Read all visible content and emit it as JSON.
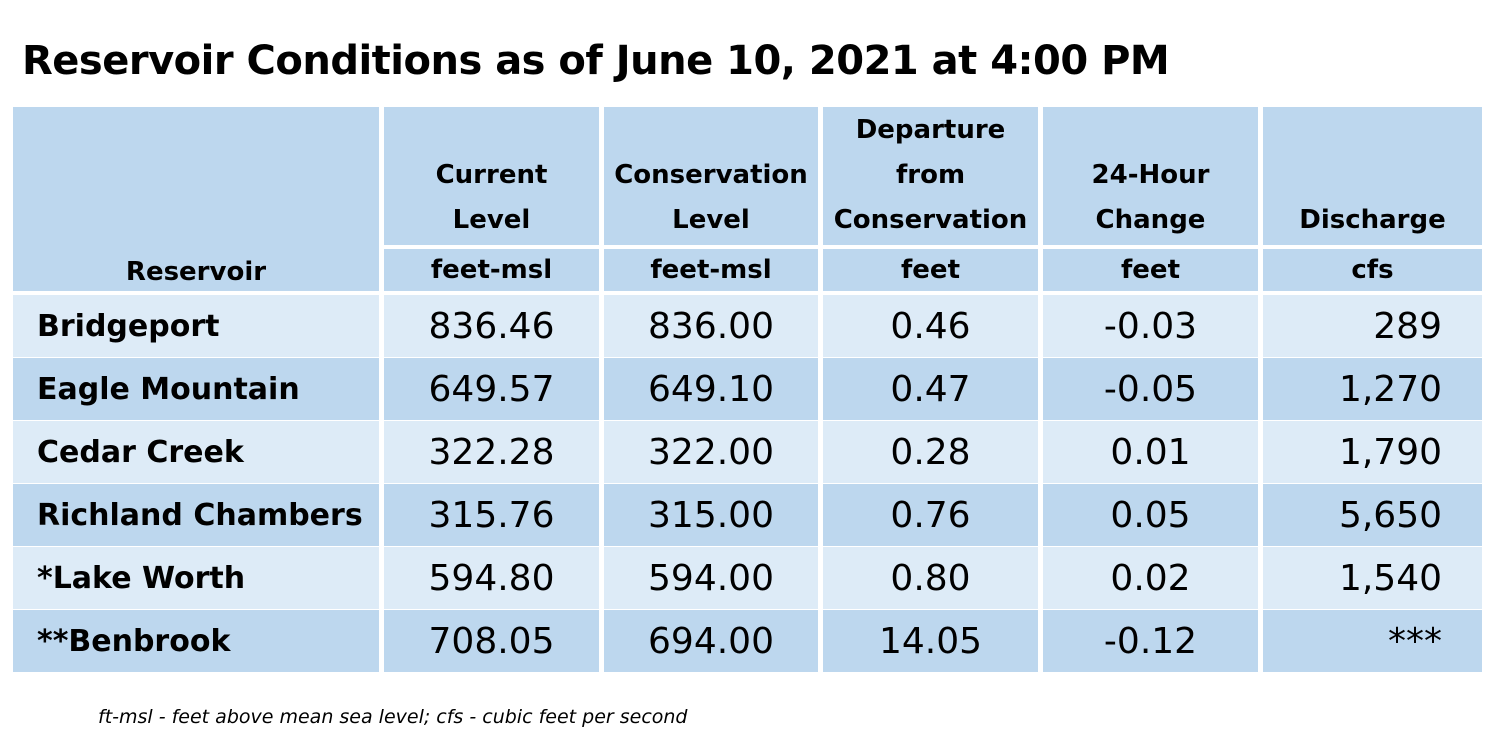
{
  "title": "Reservoir Conditions as of June 10, 2021 at 4:00 PM",
  "table": {
    "header_reservoir": "Reservoir",
    "columns": [
      {
        "lines": [
          "Current",
          "Level"
        ],
        "unit": "feet-msl"
      },
      {
        "lines": [
          "Conservation",
          "Level"
        ],
        "unit": "feet-msl"
      },
      {
        "lines": [
          "Departure",
          "from",
          "Conservation"
        ],
        "unit": "feet"
      },
      {
        "lines": [
          "24-Hour",
          "Change"
        ],
        "unit": "feet"
      },
      {
        "lines": [
          "Discharge"
        ],
        "unit": "cfs"
      }
    ],
    "rows": [
      {
        "name": "Bridgeport",
        "values": [
          "836.46",
          "836.00",
          "0.46",
          "-0.03",
          "289"
        ]
      },
      {
        "name": "Eagle Mountain",
        "values": [
          "649.57",
          "649.10",
          "0.47",
          "-0.05",
          "1,270"
        ]
      },
      {
        "name": "Cedar Creek",
        "values": [
          "322.28",
          "322.00",
          "0.28",
          "0.01",
          "1,790"
        ]
      },
      {
        "name": "Richland Chambers",
        "values": [
          "315.76",
          "315.00",
          "0.76",
          "0.05",
          "5,650"
        ]
      },
      {
        "name": "*Lake Worth",
        "values": [
          "594.80",
          "594.00",
          "0.80",
          "0.02",
          "1,540"
        ]
      },
      {
        "name": "**Benbrook",
        "values": [
          "708.05",
          "694.00",
          "14.05",
          "-0.12",
          "***"
        ]
      }
    ],
    "colors": {
      "header": "#bdd7ee",
      "row_light": "#ddebf7",
      "row_dark": "#bdd7ee",
      "divider": "#ffffff"
    }
  },
  "footnote": "ft-msl - feet above mean sea level; cfs - cubic feet per second"
}
